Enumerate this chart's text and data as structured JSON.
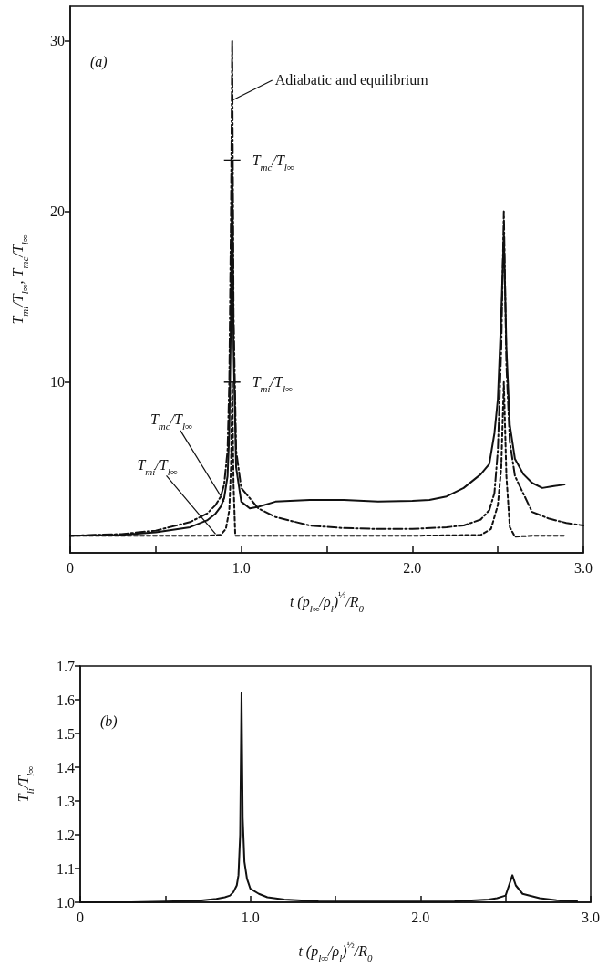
{
  "chart_data": [
    {
      "type": "line",
      "xlabel": "t (p$_{l∞}$/ρ$_{l}$)$^{½}$/R$_{0}$",
      "ylabel": "T$_{mi}$/T$_{l∞}$, T$_{mc}$/T$_{l∞}$",
      "xlim": [
        0,
        3
      ],
      "xticks": [
        0,
        {
          "value": 0.5,
          "label": null
        },
        {
          "value": 1,
          "label": "1.0"
        },
        {
          "value": 1.5,
          "label": null
        },
        {
          "value": 2,
          "label": "2.0"
        },
        {
          "value": 2.5,
          "label": null
        },
        {
          "value": 3,
          "label": "3.0"
        }
      ],
      "ylim": [
        0,
        32
      ],
      "yticks": [
        10,
        20,
        30
      ],
      "grid": false,
      "marker": "none",
      "series": [
        {
          "color": "#111111",
          "line_style": "solid",
          "x": [
            0,
            0.3,
            0.5,
            0.7,
            0.8,
            0.85,
            0.88,
            0.9,
            0.92,
            0.93,
            0.94,
            0.947,
            0.955,
            0.97,
            1.0,
            1.05,
            1.1,
            1.2,
            1.4,
            1.6,
            1.8,
            2.0,
            2.1,
            2.2,
            2.3,
            2.4,
            2.45,
            2.48,
            2.5,
            2.52,
            2.535,
            2.55,
            2.57,
            2.6,
            2.65,
            2.7,
            2.76,
            2.82,
            2.89
          ],
          "values": [
            1,
            1.05,
            1.2,
            1.5,
            1.9,
            2.3,
            2.7,
            3.2,
            4.5,
            7,
            14,
            23,
            12,
            5,
            3,
            2.6,
            2.7,
            3,
            3.1,
            3.1,
            3,
            3.05,
            3.1,
            3.3,
            3.8,
            4.6,
            5.2,
            7,
            9,
            14,
            18.7,
            12,
            7.5,
            5.5,
            4.6,
            4.1,
            3.8,
            3.9,
            4
          ]
        },
        {
          "color": "#111111",
          "line_style": "dashed",
          "x": [
            0,
            0.3,
            0.5,
            0.7,
            0.8,
            0.85,
            0.88,
            0.9,
            0.92,
            0.93,
            0.94,
            0.947,
            0.955,
            0.97,
            1.0,
            1.1,
            1.2,
            1.4,
            1.6,
            1.8,
            2.0,
            2.2,
            2.3,
            2.4,
            2.45,
            2.48,
            2.5,
            2.52,
            2.535,
            2.55,
            2.57,
            2.6,
            2.7,
            2.8,
            2.9,
            3.0
          ],
          "values": [
            1,
            1.1,
            1.3,
            1.8,
            2.3,
            2.8,
            3.3,
            4,
            6,
            10,
            20,
            30,
            14,
            6,
            3.8,
            2.6,
            2.1,
            1.6,
            1.45,
            1.4,
            1.4,
            1.5,
            1.6,
            1.95,
            2.5,
            3.5,
            6,
            12,
            20,
            11,
            6.5,
            4.5,
            2.4,
            2,
            1.75,
            1.6
          ]
        },
        {
          "color": "#111111",
          "line_style": "dotted",
          "x": [
            0,
            0.5,
            0.8,
            0.88,
            0.91,
            0.93,
            0.94,
            0.947,
            0.955,
            0.965,
            1.0,
            1.5,
            2.0,
            2.4,
            2.46,
            2.5,
            2.52,
            2.535,
            2.55,
            2.57,
            2.6,
            2.7,
            2.89
          ],
          "values": [
            1,
            1,
            1,
            1.05,
            1.4,
            2.5,
            5,
            10,
            4,
            1,
            1,
            1,
            1,
            1.05,
            1.4,
            2.8,
            5,
            10,
            4.5,
            1.5,
            0.95,
            1,
            1
          ]
        }
      ],
      "annotations": [
        "(a)",
        {
          "text": "Adiabatic and equilibrium",
          "x": 0.947,
          "y": 26.5
        },
        {
          "text": "T$_{mc}$/T$_{l∞}$",
          "x": 0.947,
          "y": 23
        },
        {
          "text": "T$_{mi}$/T$_{l∞}$",
          "x": 0.947,
          "y": 10
        },
        {
          "text": "T$_{mc}$/T$_{l∞}$",
          "x": 0.9,
          "y": 3
        },
        {
          "text": "T$_{mi}$/T$_{l∞}$",
          "x": 0.85,
          "y": 1.1
        }
      ]
    },
    {
      "type": "line",
      "xlabel": "t (p$_{l∞}$/ρ$_{l}$)$^{½}$/R$_{0}$",
      "ylabel": "T$_{li}$/T$_{l∞}$",
      "xlim": [
        0,
        3
      ],
      "xticks": [
        0,
        {
          "value": 0.5,
          "label": null
        },
        {
          "value": 1,
          "label": "1.0"
        },
        {
          "value": 1.5,
          "label": null
        },
        {
          "value": 2,
          "label": "2.0"
        },
        {
          "value": 2.5,
          "label": null
        },
        {
          "value": 3,
          "label": "3.0"
        }
      ],
      "ylim": [
        1,
        1.7
      ],
      "yticks": [
        {
          "value": 1,
          "label": "1.0"
        },
        1.1,
        1.2,
        1.3,
        1.4,
        1.5,
        1.6,
        1.7
      ],
      "grid": false,
      "marker": "none",
      "line_style": "solid",
      "color": "#111111",
      "x": [
        0,
        0.3,
        0.5,
        0.7,
        0.8,
        0.85,
        0.88,
        0.9,
        0.92,
        0.93,
        0.94,
        0.948,
        0.955,
        0.965,
        0.98,
        1.0,
        1.05,
        1.1,
        1.2,
        1.4,
        1.8,
        2.2,
        2.4,
        2.45,
        2.5,
        2.52,
        2.54,
        2.56,
        2.6,
        2.7,
        2.8,
        2.92
      ],
      "values": [
        1,
        1,
        1.002,
        1.005,
        1.01,
        1.015,
        1.02,
        1.03,
        1.05,
        1.08,
        1.2,
        1.62,
        1.25,
        1.12,
        1.07,
        1.04,
        1.025,
        1.015,
        1.008,
        1.003,
        1.002,
        1.003,
        1.008,
        1.012,
        1.02,
        1.05,
        1.08,
        1.05,
        1.025,
        1.012,
        1.006,
        1.003
      ],
      "annotations": [
        "(b)"
      ]
    }
  ]
}
